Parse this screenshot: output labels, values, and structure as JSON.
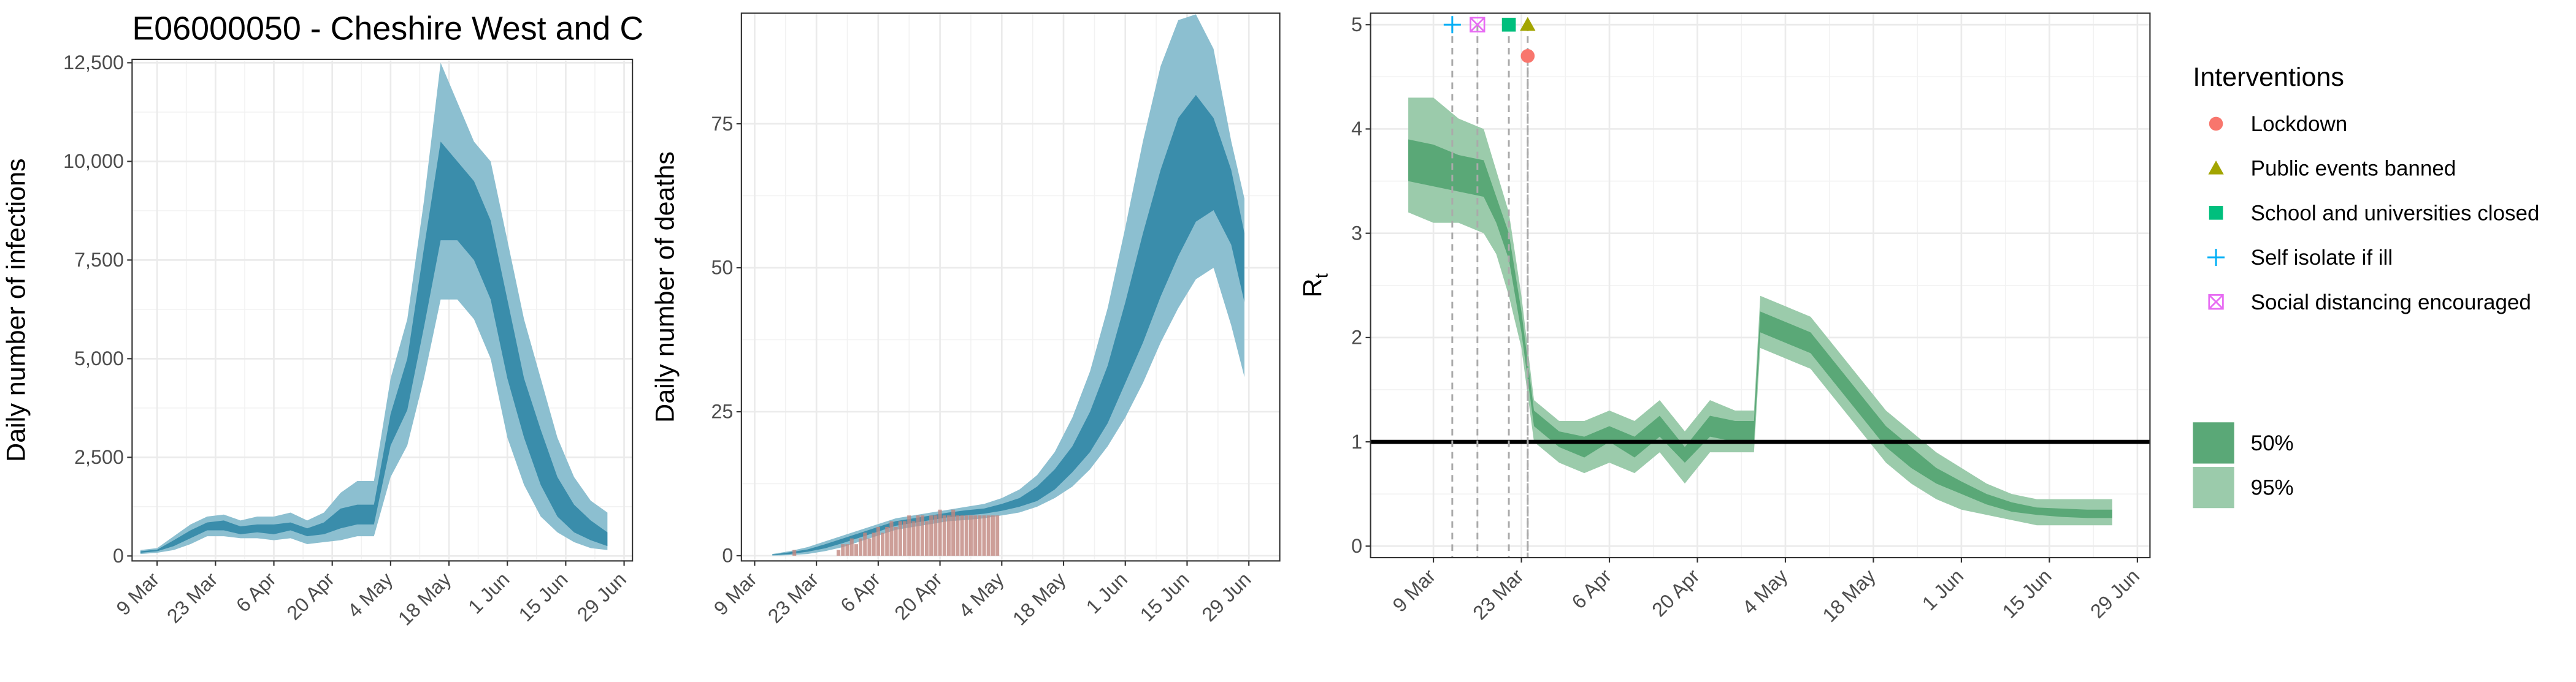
{
  "chart_data": [
    {
      "type": "band",
      "title": "E06000050 - Cheshire West and C",
      "ylabel": "Daily number of infections",
      "x": [
        "5 Mar",
        "9 Mar",
        "13 Mar",
        "17 Mar",
        "21 Mar",
        "25 Mar",
        "29 Mar",
        "2 Apr",
        "6 Apr",
        "10 Apr",
        "14 Apr",
        "18 Apr",
        "22 Apr",
        "26 Apr",
        "30 Apr",
        "4 May",
        "8 May",
        "12 May",
        "16 May",
        "20 May",
        "24 May",
        "28 May",
        "1 Jun",
        "5 Jun",
        "9 Jun",
        "13 Jun",
        "17 Jun",
        "21 Jun",
        "25 Jun"
      ],
      "series": [
        {
          "color": "#3a8dab",
          "lower": [
            80,
            120,
            250,
            450,
            650,
            650,
            550,
            600,
            550,
            650,
            500,
            550,
            700,
            800,
            800,
            2800,
            3700,
            5800,
            8000,
            8000,
            7500,
            6500,
            4500,
            3000,
            1800,
            1000,
            600,
            400,
            250
          ],
          "upper": [
            120,
            160,
            400,
            650,
            850,
            900,
            750,
            800,
            800,
            850,
            700,
            850,
            1200,
            1300,
            1300,
            3600,
            5000,
            7800,
            10500,
            10000,
            9500,
            8500,
            6500,
            4500,
            3200,
            2000,
            1300,
            900,
            600
          ]
        },
        {
          "color": "#8cbfd0",
          "lower": [
            50,
            80,
            150,
            300,
            500,
            500,
            450,
            450,
            400,
            450,
            300,
            350,
            400,
            500,
            500,
            2000,
            2800,
            4500,
            6500,
            6500,
            6000,
            5000,
            3000,
            1800,
            1000,
            600,
            350,
            200,
            150
          ],
          "upper": [
            150,
            200,
            500,
            800,
            1000,
            1050,
            900,
            1000,
            1000,
            1100,
            900,
            1100,
            1600,
            1900,
            1900,
            4500,
            6000,
            9000,
            12500,
            11500,
            10500,
            10000,
            8000,
            6000,
            4500,
            3000,
            2000,
            1400,
            1100
          ]
        }
      ],
      "xlim": [
        "3 Mar",
        "1 Jul"
      ],
      "xticks": [
        "9 Mar",
        "23 Mar",
        "6 Apr",
        "20 Apr",
        "4 May",
        "18 May",
        "1 Jun",
        "15 Jun",
        "29 Jun"
      ],
      "ylim": [
        -125,
        12585
      ],
      "yticks": [
        0,
        {
          "value": 2500,
          "label": "2,500"
        },
        {
          "value": 5000,
          "label": "5,000"
        },
        {
          "value": 7500,
          "label": "7,500"
        },
        {
          "value": 10000,
          "label": "10,000"
        },
        {
          "value": 12500,
          "label": "12,500"
        }
      ],
      "grid": true
    },
    {
      "type": "band",
      "ylabel": "Daily number of deaths",
      "x": [
        "13 Mar",
        "17 Mar",
        "21 Mar",
        "25 Mar",
        "29 Mar",
        "2 Apr",
        "6 Apr",
        "10 Apr",
        "14 Apr",
        "18 Apr",
        "22 Apr",
        "26 Apr",
        "30 Apr",
        "4 May",
        "8 May",
        "12 May",
        "16 May",
        "20 May",
        "24 May",
        "28 May",
        "1 Jun",
        "5 Jun",
        "9 Jun",
        "13 Jun",
        "17 Jun",
        "21 Jun",
        "25 Jun",
        "28 Jun"
      ],
      "series": [
        {
          "color": "#3a8dab",
          "lower": [
            0.1,
            0.3,
            0.7,
            1.3,
            2.2,
            3.2,
            4.2,
            5.2,
            5.7,
            6.2,
            6.7,
            7,
            7.3,
            7.8,
            8.5,
            9.5,
            11.5,
            14.5,
            18,
            23,
            30,
            37,
            45,
            52,
            58,
            60,
            54,
            44
          ],
          "upper": [
            0.2,
            0.6,
            1.1,
            2,
            3,
            4,
            5,
            6,
            6.5,
            7,
            7.5,
            7.9,
            8.2,
            9,
            10,
            12,
            15,
            19,
            25,
            33,
            44,
            56,
            67,
            76,
            80,
            76,
            67,
            56
          ]
        },
        {
          "color": "#8cbfd0",
          "lower": [
            0,
            0.1,
            0.3,
            0.8,
            1.5,
            2.5,
            3.5,
            4.5,
            5,
            5.5,
            6,
            6.2,
            6.5,
            7,
            7.5,
            8.5,
            10,
            12,
            15,
            19,
            24,
            30,
            37,
            43,
            48,
            50,
            40,
            31
          ],
          "upper": [
            0.3,
            0.8,
            1.5,
            2.5,
            3.5,
            4.5,
            5.5,
            6.5,
            7,
            7.5,
            8,
            8.5,
            9,
            10,
            11.5,
            14,
            18,
            24,
            32,
            43,
            57,
            72,
            85,
            93,
            94,
            88,
            72,
            62
          ]
        }
      ],
      "bars": {
        "color": "#c0877f",
        "x": [
          "18 Mar",
          "28 Mar",
          "29 Mar",
          "30 Mar",
          "31 Mar",
          "1 Apr",
          "2 Apr",
          "3 Apr",
          "4 Apr",
          "5 Apr",
          "6 Apr",
          "7 Apr",
          "8 Apr",
          "9 Apr",
          "10 Apr",
          "11 Apr",
          "12 Apr",
          "13 Apr",
          "14 Apr",
          "15 Apr",
          "16 Apr",
          "17 Apr",
          "18 Apr",
          "19 Apr",
          "20 Apr",
          "21 Apr",
          "22 Apr",
          "23 Apr",
          "24 Apr",
          "25 Apr",
          "26 Apr",
          "27 Apr",
          "28 Apr",
          "29 Apr",
          "30 Apr",
          "1 May",
          "2 May",
          "3 May"
        ],
        "values": [
          1,
          1,
          2,
          2,
          3,
          2,
          3,
          4,
          3,
          4,
          5,
          4,
          5,
          6,
          5,
          6,
          6,
          7,
          6,
          7,
          7,
          6,
          7,
          7,
          8,
          7,
          7,
          8,
          7,
          7,
          7,
          7,
          7,
          7,
          7,
          7,
          7,
          7
        ]
      },
      "xlim": [
        "6 Mar",
        "6 Jul"
      ],
      "xticks": [
        "9 Mar",
        "23 Mar",
        "6 Apr",
        "20 Apr",
        "4 May",
        "18 May",
        "1 Jun",
        "15 Jun",
        "29 Jun"
      ],
      "ylim": [
        -0.9,
        94.2
      ],
      "yticks": [
        0,
        25,
        50,
        75
      ],
      "grid": true
    },
    {
      "type": "band",
      "ylabel": "R",
      "ylabel_sub": "t",
      "x": [
        "5 Mar",
        "9 Mar",
        "13 Mar",
        "17 Mar",
        "19 Mar",
        "21 Mar",
        "23 Mar",
        "25 Mar",
        "29 Mar",
        "2 Apr",
        "6 Apr",
        "10 Apr",
        "14 Apr",
        "18 Apr",
        "22 Apr",
        "26 Apr",
        "29 Apr",
        "30 Apr",
        "4 May",
        "8 May",
        "12 May",
        "16 May",
        "20 May",
        "24 May",
        "28 May",
        "1 Jun",
        "5 Jun",
        "9 Jun",
        "13 Jun",
        "17 Jun",
        "21 Jun",
        "25 Jun"
      ],
      "series": [
        {
          "name": "50%",
          "color": "#5aa877",
          "lower": [
            3.5,
            3.45,
            3.4,
            3.35,
            3.1,
            2.75,
            2.05,
            1.15,
            0.95,
            0.85,
            1.0,
            0.85,
            1.05,
            0.8,
            1.05,
            1.0,
            1.0,
            2.05,
            1.95,
            1.85,
            1.55,
            1.25,
            0.95,
            0.75,
            0.6,
            0.5,
            0.4,
            0.33,
            0.3,
            0.28,
            0.27,
            0.27
          ],
          "upper": [
            3.9,
            3.85,
            3.75,
            3.7,
            3.35,
            3.0,
            2.25,
            1.3,
            1.1,
            1.05,
            1.15,
            1.05,
            1.25,
            0.95,
            1.25,
            1.2,
            1.2,
            2.25,
            2.15,
            2.05,
            1.75,
            1.45,
            1.15,
            0.95,
            0.75,
            0.62,
            0.5,
            0.42,
            0.37,
            0.36,
            0.35,
            0.35
          ]
        },
        {
          "name": "95%",
          "color": "#9bcbab",
          "lower": [
            3.2,
            3.1,
            3.1,
            3.0,
            2.8,
            2.4,
            1.9,
            1.0,
            0.8,
            0.7,
            0.8,
            0.7,
            0.9,
            0.6,
            0.9,
            0.9,
            0.9,
            1.9,
            1.8,
            1.7,
            1.4,
            1.1,
            0.8,
            0.6,
            0.45,
            0.35,
            0.3,
            0.25,
            0.2,
            0.2,
            0.2,
            0.2
          ],
          "upper": [
            4.3,
            4.3,
            4.1,
            4.0,
            3.6,
            3.2,
            2.4,
            1.4,
            1.2,
            1.2,
            1.3,
            1.2,
            1.4,
            1.1,
            1.4,
            1.3,
            1.3,
            2.4,
            2.3,
            2.2,
            1.9,
            1.6,
            1.3,
            1.1,
            0.9,
            0.75,
            0.6,
            0.5,
            0.45,
            0.45,
            0.45,
            0.45
          ]
        }
      ],
      "hline": 1,
      "interventions": {
        "title": "Interventions",
        "items": [
          {
            "name": "Lockdown",
            "color": "#f8766d",
            "shape": "circle",
            "date": "24 Mar",
            "y": 4.7
          },
          {
            "name": "Public events banned",
            "color": "#a3a500",
            "shape": "triangle",
            "date": "24 Mar",
            "y": 5
          },
          {
            "name": "School and universities closed",
            "color": "#00bf7d",
            "shape": "square",
            "date": "21 Mar",
            "y": 5
          },
          {
            "name": "Self isolate if ill",
            "color": "#00b0f6",
            "shape": "plus",
            "date": "12 Mar",
            "y": 5
          },
          {
            "name": "Social distancing encouraged",
            "color": "#e76bf3",
            "shape": "square-cross",
            "date": "16 Mar",
            "y": 5
          }
        ]
      },
      "xlim": [
        "28 Feb",
        "1 Jul"
      ],
      "xticks": [
        "9 Mar",
        "23 Mar",
        "6 Apr",
        "20 Apr",
        "4 May",
        "18 May",
        "1 Jun",
        "15 Jun",
        "29 Jun"
      ],
      "ylim": [
        -0.11,
        5.11
      ],
      "yticks": [
        0,
        1,
        2,
        3,
        4,
        5
      ],
      "grid": true
    }
  ]
}
